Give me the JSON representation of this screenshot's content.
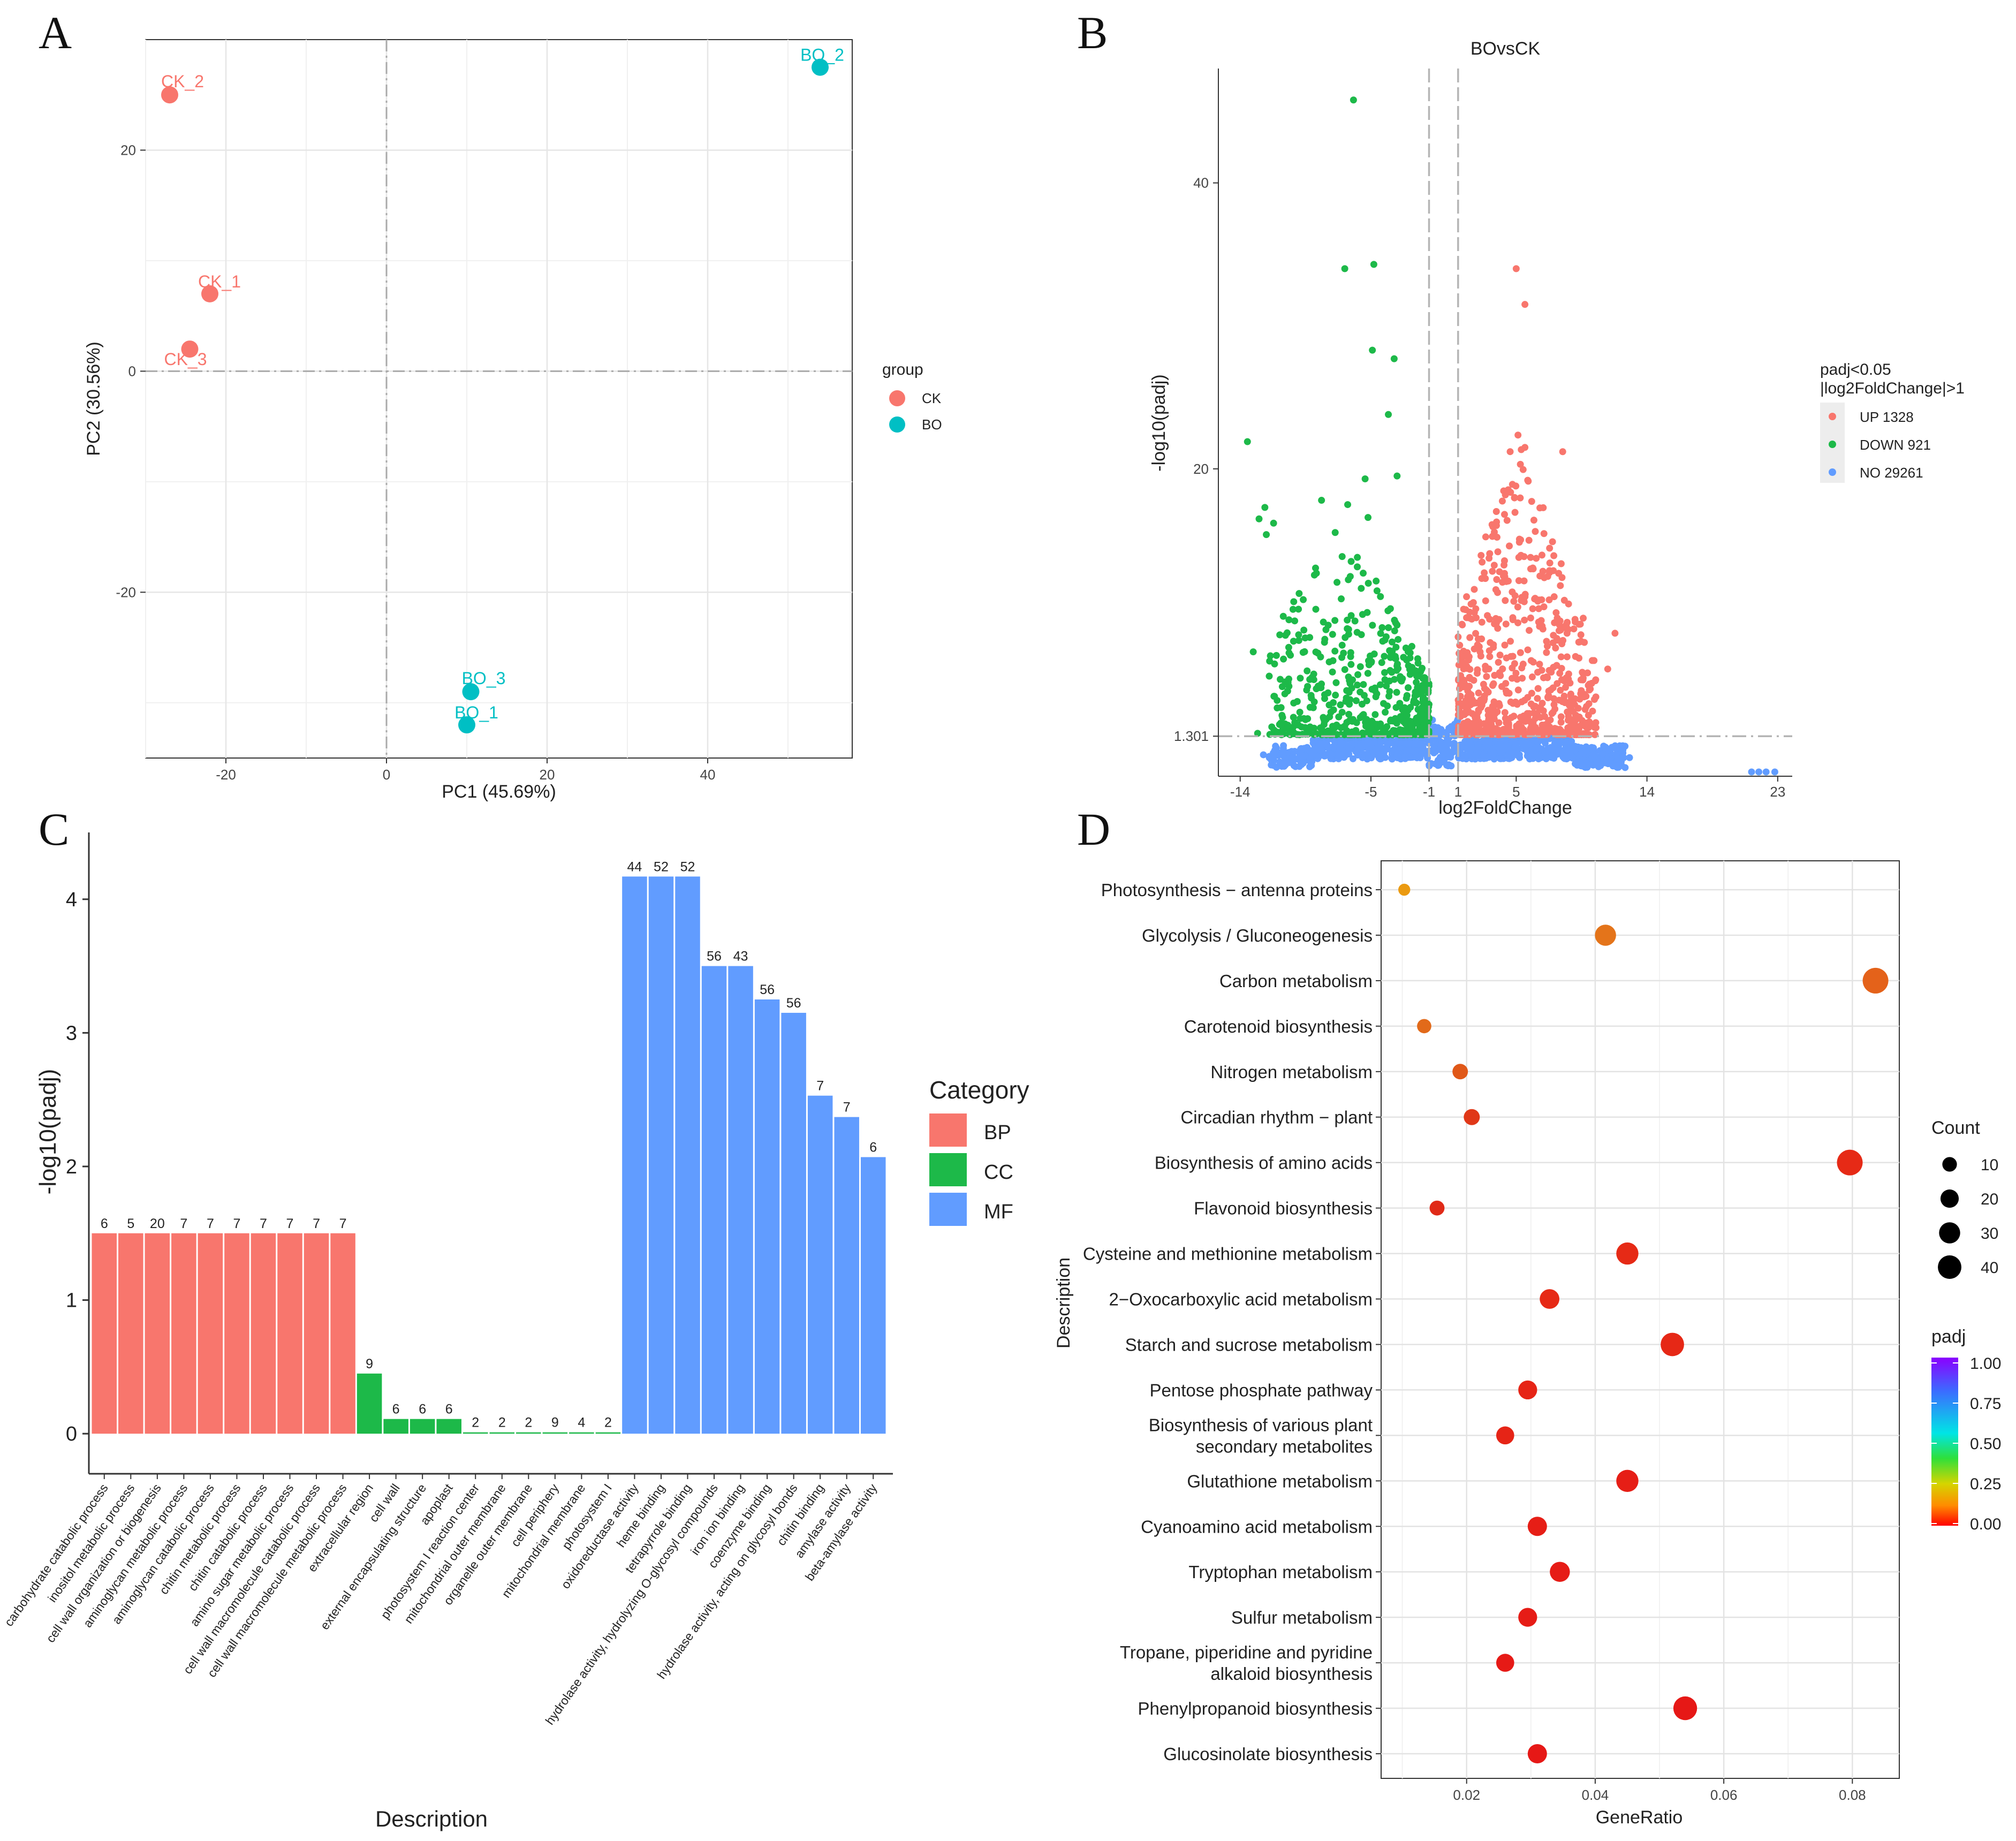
{
  "panels": {
    "a": "A",
    "b": "B",
    "c": "C",
    "d": "D"
  },
  "colors": {
    "ck": "#f8766d",
    "bo": "#00bfc4",
    "up": "#f8766d",
    "down": "#1db949",
    "no": "#619cff",
    "bp": "#f8766d",
    "cc": "#1db949",
    "mf": "#619cff"
  },
  "chart_data": [
    {
      "id": "pca",
      "type": "scatter",
      "xlabel": "PC1 (45.69%)",
      "ylabel": "PC2 (30.56%)",
      "xlim": [
        -30,
        58
      ],
      "ylim": [
        -35,
        30
      ],
      "xticks": [
        -20,
        0,
        20,
        40
      ],
      "yticks": [
        -20,
        0,
        20
      ],
      "legend_title": "group",
      "groups": [
        "CK",
        "BO"
      ],
      "points": [
        {
          "label": "CK_2",
          "group": "CK",
          "x": -27,
          "y": 25
        },
        {
          "label": "CK_1",
          "group": "CK",
          "x": -22,
          "y": 7
        },
        {
          "label": "CK_3",
          "group": "CK",
          "x": -24.5,
          "y": 2
        },
        {
          "label": "BO_2",
          "group": "BO",
          "x": 54,
          "y": 27.5
        },
        {
          "label": "BO_3",
          "group": "BO",
          "x": 10.5,
          "y": -29
        },
        {
          "label": "BO_1",
          "group": "BO",
          "x": 10,
          "y": -32
        }
      ]
    },
    {
      "id": "volcano",
      "type": "scatter",
      "title": "BOvsCK",
      "xlabel": "log2FoldChange",
      "ylabel": "-log10(padj)",
      "xlim": [
        -15.5,
        24
      ],
      "ylim": [
        -1.5,
        48
      ],
      "xticks": [
        -14,
        -5,
        -1,
        1,
        5,
        14,
        23
      ],
      "yticks": [
        1.301,
        20,
        40
      ],
      "ytick_labels": [
        "1.301",
        "20",
        "40"
      ],
      "threshold_lines": {
        "x": [
          -1,
          1
        ],
        "y": 1.301
      },
      "legend_title_1": "padj<0.05",
      "legend_title_2": "|log2FoldChange|>1",
      "legend": [
        "UP 1328",
        "DOWN 921",
        "NO 29261"
      ],
      "highlight_up": [
        [
          5,
          34
        ],
        [
          5.6,
          31.5
        ],
        [
          5.6,
          21.5
        ],
        [
          8.2,
          21.2
        ],
        [
          8.5,
          8.5
        ],
        [
          11.8,
          8.5
        ],
        [
          11.3,
          6
        ],
        [
          10.2,
          5
        ]
      ],
      "highlight_down": [
        [
          -6.2,
          45.8
        ],
        [
          -6.8,
          34
        ],
        [
          -4.8,
          34.3
        ],
        [
          -4.9,
          28.3
        ],
        [
          -3.4,
          27.7
        ],
        [
          -3.8,
          23.8
        ],
        [
          -13.5,
          21.9
        ],
        [
          -3.2,
          19.5
        ],
        [
          -5.4,
          19.3
        ],
        [
          -8.4,
          17.8
        ],
        [
          -12.3,
          17.3
        ],
        [
          -11.7,
          16.2
        ],
        [
          -12.7,
          16.5
        ],
        [
          -12.2,
          15.4
        ],
        [
          -6.6,
          17.5
        ],
        [
          -5.2,
          16.6
        ],
        [
          -13.1,
          7.2
        ],
        [
          -12.0,
          5.5
        ],
        [
          -8.9,
          3.7
        ],
        [
          -12.8,
          1.5
        ]
      ],
      "highlight_no": [
        [
          -12.4,
          0.0
        ],
        [
          -9.2,
          0.3
        ],
        [
          12.8,
          -0.2
        ],
        [
          21.2,
          -1.2
        ],
        [
          21.7,
          -1.2
        ],
        [
          22.2,
          -1.2
        ],
        [
          22.8,
          -1.2
        ]
      ]
    },
    {
      "id": "go-enrichment",
      "type": "bar",
      "xlabel": "Description",
      "ylabel": "-log10(padj)",
      "ylim": [
        -0.3,
        4.5
      ],
      "yticks": [
        0,
        1,
        2,
        3,
        4
      ],
      "legend_title": "Category",
      "categories_legend": [
        "BP",
        "CC",
        "MF"
      ],
      "bars": [
        {
          "label": "carbohydrate catabolic process",
          "category": "BP",
          "value": 1.5,
          "count": "6"
        },
        {
          "label": "inositol metabolic process",
          "category": "BP",
          "value": 1.5,
          "count": "5"
        },
        {
          "label": "cell wall organization or biogenesis",
          "category": "BP",
          "value": 1.5,
          "count": "20"
        },
        {
          "label": "aminoglycan metabolic process",
          "category": "BP",
          "value": 1.5,
          "count": "7"
        },
        {
          "label": "aminoglycan catabolic process",
          "category": "BP",
          "value": 1.5,
          "count": "7"
        },
        {
          "label": "chitin metabolic process",
          "category": "BP",
          "value": 1.5,
          "count": "7"
        },
        {
          "label": "chitin catabolic process",
          "category": "BP",
          "value": 1.5,
          "count": "7"
        },
        {
          "label": "amino sugar metabolic process",
          "category": "BP",
          "value": 1.5,
          "count": "7"
        },
        {
          "label": "cell wall macromolecule catabolic process",
          "category": "BP",
          "value": 1.5,
          "count": "7"
        },
        {
          "label": "cell wall macromolecule metabolic process",
          "category": "BP",
          "value": 1.5,
          "count": "7"
        },
        {
          "label": "extracellular region",
          "category": "CC",
          "value": 0.45,
          "count": "9"
        },
        {
          "label": "cell wall",
          "category": "CC",
          "value": 0.11,
          "count": "6"
        },
        {
          "label": "external encapsulating structure",
          "category": "CC",
          "value": 0.11,
          "count": "6"
        },
        {
          "label": "apoplast",
          "category": "CC",
          "value": 0.11,
          "count": "6"
        },
        {
          "label": "photosystem I reaction center",
          "category": "CC",
          "value": 0.01,
          "count": "2"
        },
        {
          "label": "mitochondrial outer membrane",
          "category": "CC",
          "value": 0.01,
          "count": "2"
        },
        {
          "label": "organelle outer membrane",
          "category": "CC",
          "value": 0.01,
          "count": "2"
        },
        {
          "label": "cell periphery",
          "category": "CC",
          "value": 0.01,
          "count": "9"
        },
        {
          "label": "mitochondrial membrane",
          "category": "CC",
          "value": 0.01,
          "count": "4"
        },
        {
          "label": "photosystem I",
          "category": "CC",
          "value": 0.01,
          "count": "2"
        },
        {
          "label": "oxidoreductase activity",
          "category": "MF",
          "value": 4.17,
          "count": "44"
        },
        {
          "label": "heme binding",
          "category": "MF",
          "value": 4.17,
          "count": "52"
        },
        {
          "label": "tetrapyrrole binding",
          "category": "MF",
          "value": 4.17,
          "count": "52"
        },
        {
          "label": "hydrolase activity, hydrolyzing O-glycosyl compounds",
          "category": "MF",
          "value": 3.5,
          "count": "56"
        },
        {
          "label": "iron ion binding",
          "category": "MF",
          "value": 3.5,
          "count": "43"
        },
        {
          "label": "coenzyme binding",
          "category": "MF",
          "value": 3.25,
          "count": "56"
        },
        {
          "label": "hydrolase activity, acting on glycosyl bonds",
          "category": "MF",
          "value": 3.15,
          "count": "56"
        },
        {
          "label": "chitin binding",
          "category": "MF",
          "value": 2.53,
          "count": "7"
        },
        {
          "label": "amylase activity",
          "category": "MF",
          "value": 2.37,
          "count": "7"
        },
        {
          "label": "beta-amylase activity",
          "category": "MF",
          "value": 2.07,
          "count": "6"
        }
      ]
    },
    {
      "id": "kegg-enrichment",
      "type": "scatter",
      "xlabel": "GeneRatio",
      "ylabel": "Description",
      "xlim": [
        0.0067,
        0.0873
      ],
      "xticks": [
        0.02,
        0.04,
        0.06,
        0.08
      ],
      "xtick_labels": [
        "0.02",
        "0.04",
        "0.06",
        "0.08"
      ],
      "size_legend_title": "Count",
      "size_legend": [
        "10",
        "20",
        "30",
        "40"
      ],
      "color_legend_title": "padj",
      "color_legend": [
        "1.00",
        "0.75",
        "0.50",
        "0.25",
        "0.00"
      ],
      "terms": [
        {
          "name_lines": [
            "Photosynthesis − antenna proteins"
          ],
          "x": 0.0103,
          "count": 3,
          "color": "#eb9a10"
        },
        {
          "name_lines": [
            "Glycolysis / Gluconeogenesis"
          ],
          "x": 0.0416,
          "count": 21,
          "color": "#e4741a"
        },
        {
          "name_lines": [
            "Carbon metabolism"
          ],
          "x": 0.0836,
          "count": 36,
          "color": "#e4621a"
        },
        {
          "name_lines": [
            "Carotenoid biosynthesis"
          ],
          "x": 0.0134,
          "count": 6,
          "color": "#e26a1a"
        },
        {
          "name_lines": [
            "Nitrogen metabolism"
          ],
          "x": 0.019,
          "count": 8,
          "color": "#e05818"
        },
        {
          "name_lines": [
            "Circadian rhythm − plant"
          ],
          "x": 0.0208,
          "count": 9,
          "color": "#e03818"
        },
        {
          "name_lines": [
            "Biosynthesis of amino acids"
          ],
          "x": 0.0796,
          "count": 36,
          "color": "#e62a16"
        },
        {
          "name_lines": [
            "Flavonoid biosynthesis"
          ],
          "x": 0.0154,
          "count": 7,
          "color": "#e02a18"
        },
        {
          "name_lines": [
            "Cysteine and methionine metabolism"
          ],
          "x": 0.045,
          "count": 24,
          "color": "#e62a16"
        },
        {
          "name_lines": [
            "2−Oxocarboxylic acid metabolism"
          ],
          "x": 0.0329,
          "count": 17,
          "color": "#e62a16"
        },
        {
          "name_lines": [
            "Starch and sucrose metabolism"
          ],
          "x": 0.052,
          "count": 28,
          "color": "#e62816"
        },
        {
          "name_lines": [
            "Pentose phosphate pathway"
          ],
          "x": 0.0295,
          "count": 15,
          "color": "#e62416"
        },
        {
          "name_lines": [
            "Biosynthesis of various plant",
            "secondary metabolites"
          ],
          "x": 0.026,
          "count": 13,
          "color": "#e62416"
        },
        {
          "name_lines": [
            "Glutathione metabolism"
          ],
          "x": 0.045,
          "count": 24,
          "color": "#e61e16"
        },
        {
          "name_lines": [
            "Cyanoamino acid metabolism"
          ],
          "x": 0.031,
          "count": 16,
          "color": "#e61e16"
        },
        {
          "name_lines": [
            "Tryptophan metabolism"
          ],
          "x": 0.0345,
          "count": 18,
          "color": "#e61c16"
        },
        {
          "name_lines": [
            "Sulfur metabolism"
          ],
          "x": 0.0295,
          "count": 15,
          "color": "#e61c16"
        },
        {
          "name_lines": [
            "Tropane, piperidine and pyridine",
            "alkaloid biosynthesis"
          ],
          "x": 0.026,
          "count": 13,
          "color": "#e61a16"
        },
        {
          "name_lines": [
            "Phenylpropanoid biosynthesis"
          ],
          "x": 0.054,
          "count": 29,
          "color": "#e61816"
        },
        {
          "name_lines": [
            "Glucosinolate biosynthesis"
          ],
          "x": 0.031,
          "count": 16,
          "color": "#e61816"
        }
      ]
    }
  ]
}
